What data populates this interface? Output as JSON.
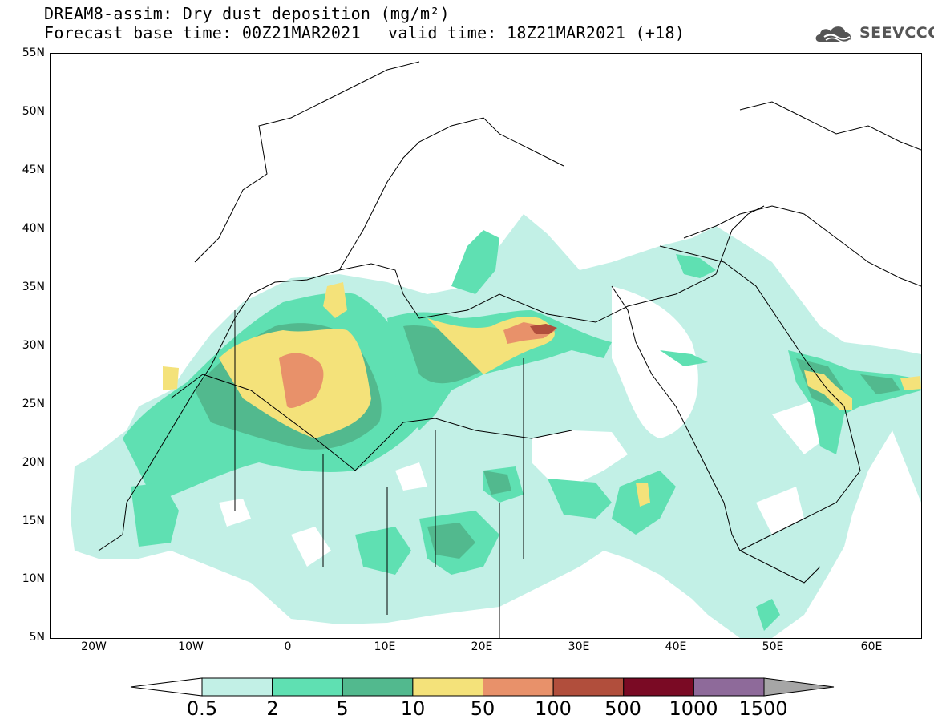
{
  "title": {
    "line1": "DREAM8-assim: Dry dust deposition (mg/m²)",
    "line2a": "Forecast base time: 00Z21MAR2021",
    "line2b": "valid time: 18Z21MAR2021 (+18)"
  },
  "logo": {
    "text": "SEEVCCC",
    "icon": "cloud-logo-icon"
  },
  "axes": {
    "lat_labels": [
      "55N",
      "50N",
      "45N",
      "40N",
      "35N",
      "30N",
      "25N",
      "20N",
      "15N",
      "10N",
      "5N"
    ],
    "lon_labels": [
      "20W",
      "10W",
      "0",
      "10E",
      "20E",
      "30E",
      "40E",
      "50E",
      "60E"
    ]
  },
  "colorbar": {
    "labels": [
      "0.5",
      "2",
      "5",
      "10",
      "50",
      "100",
      "500",
      "1000",
      "1500"
    ],
    "colors": [
      "#c2f0e6",
      "#5fe0b2",
      "#52b98e",
      "#f4e27a",
      "#e8916a",
      "#b14e3c",
      "#7a0a24",
      "#8e6a9a"
    ],
    "under_color": "#ffffff",
    "over_color": "#a6a6a6"
  }
}
